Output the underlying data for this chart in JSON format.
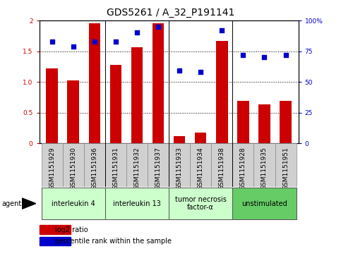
{
  "title": "GDS5261 / A_32_P191141",
  "samples": [
    "GSM1151929",
    "GSM1151930",
    "GSM1151936",
    "GSM1151931",
    "GSM1151932",
    "GSM1151937",
    "GSM1151933",
    "GSM1151934",
    "GSM1151938",
    "GSM1151928",
    "GSM1151935",
    "GSM1151951"
  ],
  "log2_ratio": [
    1.22,
    1.02,
    1.95,
    1.28,
    1.57,
    1.95,
    0.12,
    0.17,
    1.67,
    0.69,
    0.64,
    0.69
  ],
  "percentile_rank": [
    83,
    79,
    83,
    83,
    90,
    95,
    59,
    58,
    92,
    72,
    70,
    72
  ],
  "bar_color": "#cc0000",
  "dot_color": "#0000cc",
  "ylim_left": [
    0,
    2
  ],
  "ylim_right": [
    0,
    100
  ],
  "yticks_left": [
    0,
    0.5,
    1.0,
    1.5,
    2.0
  ],
  "yticks_right": [
    0,
    25,
    50,
    75,
    100
  ],
  "ytick_labels_left": [
    "0",
    "0.5",
    "1.0",
    "1.5",
    "2"
  ],
  "ytick_labels_right": [
    "0",
    "25",
    "50",
    "75",
    "100%"
  ],
  "hlines": [
    0.5,
    1.0,
    1.5
  ],
  "groups": [
    {
      "label": "interleukin 4",
      "start": 0,
      "end": 3,
      "color": "#ccffcc"
    },
    {
      "label": "interleukin 13",
      "start": 3,
      "end": 6,
      "color": "#ccffcc"
    },
    {
      "label": "tumor necrosis\nfactor-α",
      "start": 6,
      "end": 9,
      "color": "#ccffcc"
    },
    {
      "label": "unstimulated",
      "start": 9,
      "end": 12,
      "color": "#66cc66"
    }
  ],
  "agent_label": "agent",
  "legend_red": "log2 ratio",
  "legend_blue": "percentile rank within the sample",
  "title_fontsize": 10,
  "tick_fontsize": 6.5,
  "group_fontsize": 7,
  "legend_fontsize": 7,
  "sample_bg": "#d0d0d0",
  "plot_bg": "#ffffff",
  "bar_width": 0.55
}
